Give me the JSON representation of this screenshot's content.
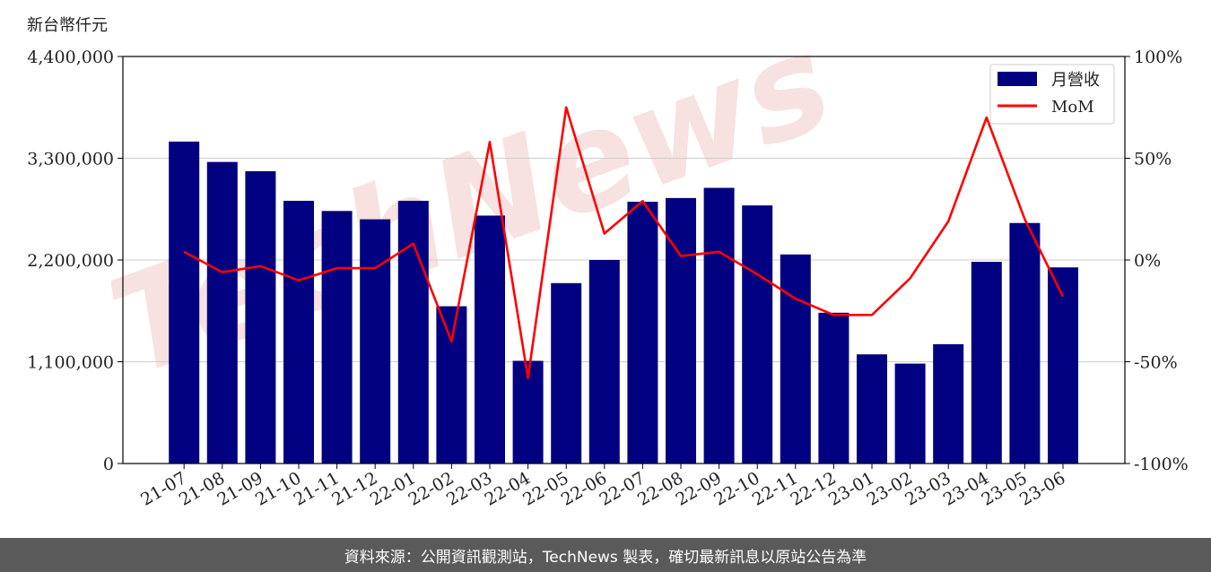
{
  "unit_label": "新台幣仟元",
  "footer_text": "資料來源：公開資訊觀測站，TechNews 製表，確切最新訊息以原站公告為準",
  "watermark": "TechNews",
  "colors": {
    "bar": "#000080",
    "line": "#ff0000",
    "grid": "#cccccc",
    "footer_bg": "#5a5a5a",
    "watermark": "#f2c9c9"
  },
  "chart_data": {
    "type": "bar",
    "categories": [
      "21-07",
      "21-08",
      "21-09",
      "21-10",
      "21-11",
      "21-12",
      "22-01",
      "22-02",
      "22-03",
      "22-04",
      "22-05",
      "22-06",
      "22-07",
      "22-08",
      "22-09",
      "22-10",
      "22-11",
      "22-12",
      "23-01",
      "23-02",
      "23-03",
      "23-04",
      "23-05",
      "23-06"
    ],
    "series": [
      {
        "name": "月營收",
        "type": "bar",
        "axis": "left",
        "values": [
          3480000,
          3260000,
          3160000,
          2840000,
          2730000,
          2640000,
          2840000,
          1700000,
          2680000,
          1110000,
          1950000,
          2200000,
          2830000,
          2870000,
          2980000,
          2790000,
          2260000,
          1630000,
          1180000,
          1080000,
          1290000,
          2180000,
          2600000,
          2120000
        ]
      },
      {
        "name": "MoM",
        "type": "line",
        "axis": "right",
        "unit": "%",
        "values": [
          4,
          -6,
          -3,
          -10,
          -4,
          -4,
          8,
          -40,
          58,
          -58,
          75,
          13,
          29,
          2,
          4,
          -7,
          -19,
          -27,
          -27,
          -9,
          19,
          70,
          20,
          -18
        ]
      }
    ],
    "y_left": {
      "lim": [
        0,
        4400000
      ],
      "ticks": [
        0,
        1100000,
        2200000,
        3300000,
        4400000
      ],
      "tick_labels": [
        "0",
        "1,100,000",
        "2,200,000",
        "3,300,000",
        "4,400,000"
      ]
    },
    "y_right": {
      "lim": [
        -100,
        100
      ],
      "ticks": [
        -100,
        -50,
        0,
        50,
        100
      ],
      "tick_labels": [
        "-100%",
        "-50%",
        "0%",
        "50%",
        "100%"
      ]
    },
    "grid": true,
    "legend": "top-right"
  }
}
